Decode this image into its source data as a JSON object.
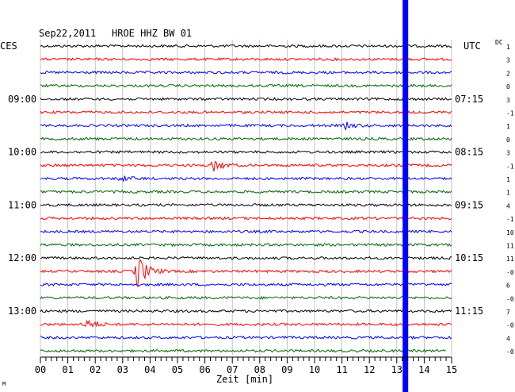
{
  "chart_data": {
    "type": "line",
    "header": {
      "date": "Sep22,2011",
      "station": "HROE HHZ BW 01"
    },
    "left_timezone": "CES",
    "right_timezone": "UTC",
    "dc_label": "DC",
    "xlabel": "Zeit [min]",
    "xlim": [
      0,
      15
    ],
    "x_ticks": [
      "00",
      "01",
      "02",
      "03",
      "04",
      "05",
      "06",
      "07",
      "08",
      "09",
      "10",
      "11",
      "12",
      "13",
      "14",
      "15"
    ],
    "rows_per_label": 4,
    "left_hour_labels": [
      "09:00",
      "10:00",
      "11:00",
      "12:00",
      "13:00"
    ],
    "right_hour_labels": [
      "07:15",
      "08:15",
      "09:15",
      "10:15",
      "11:15"
    ],
    "trace_colors": [
      "#000000",
      "#ff0000",
      "#0000ff",
      "#006400"
    ],
    "dc_offsets": [
      "1",
      "3",
      "2",
      "0",
      "3",
      "-1",
      "1",
      "0",
      "3",
      "-1",
      "1",
      "1",
      "4",
      "-1",
      "10",
      "11",
      "11",
      "-0",
      "6",
      "-0",
      "7",
      "-0",
      "4",
      "-0"
    ],
    "events": [
      {
        "row": 9,
        "minute": 6.3,
        "amplitude": "moderate"
      },
      {
        "row": 17,
        "minute": 3.5,
        "amplitude": "large"
      },
      {
        "row": 21,
        "minute": 1.6,
        "amplitude": "moderate"
      },
      {
        "row": 10,
        "minute": 2.9,
        "amplitude": "small"
      },
      {
        "row": 6,
        "minute": 11.1,
        "amplitude": "small"
      }
    ],
    "current_time_minute": 13.3,
    "current_time_color": "#0000ff",
    "partial_last_row_end_minute": 14.8
  },
  "footer_mark": "M"
}
